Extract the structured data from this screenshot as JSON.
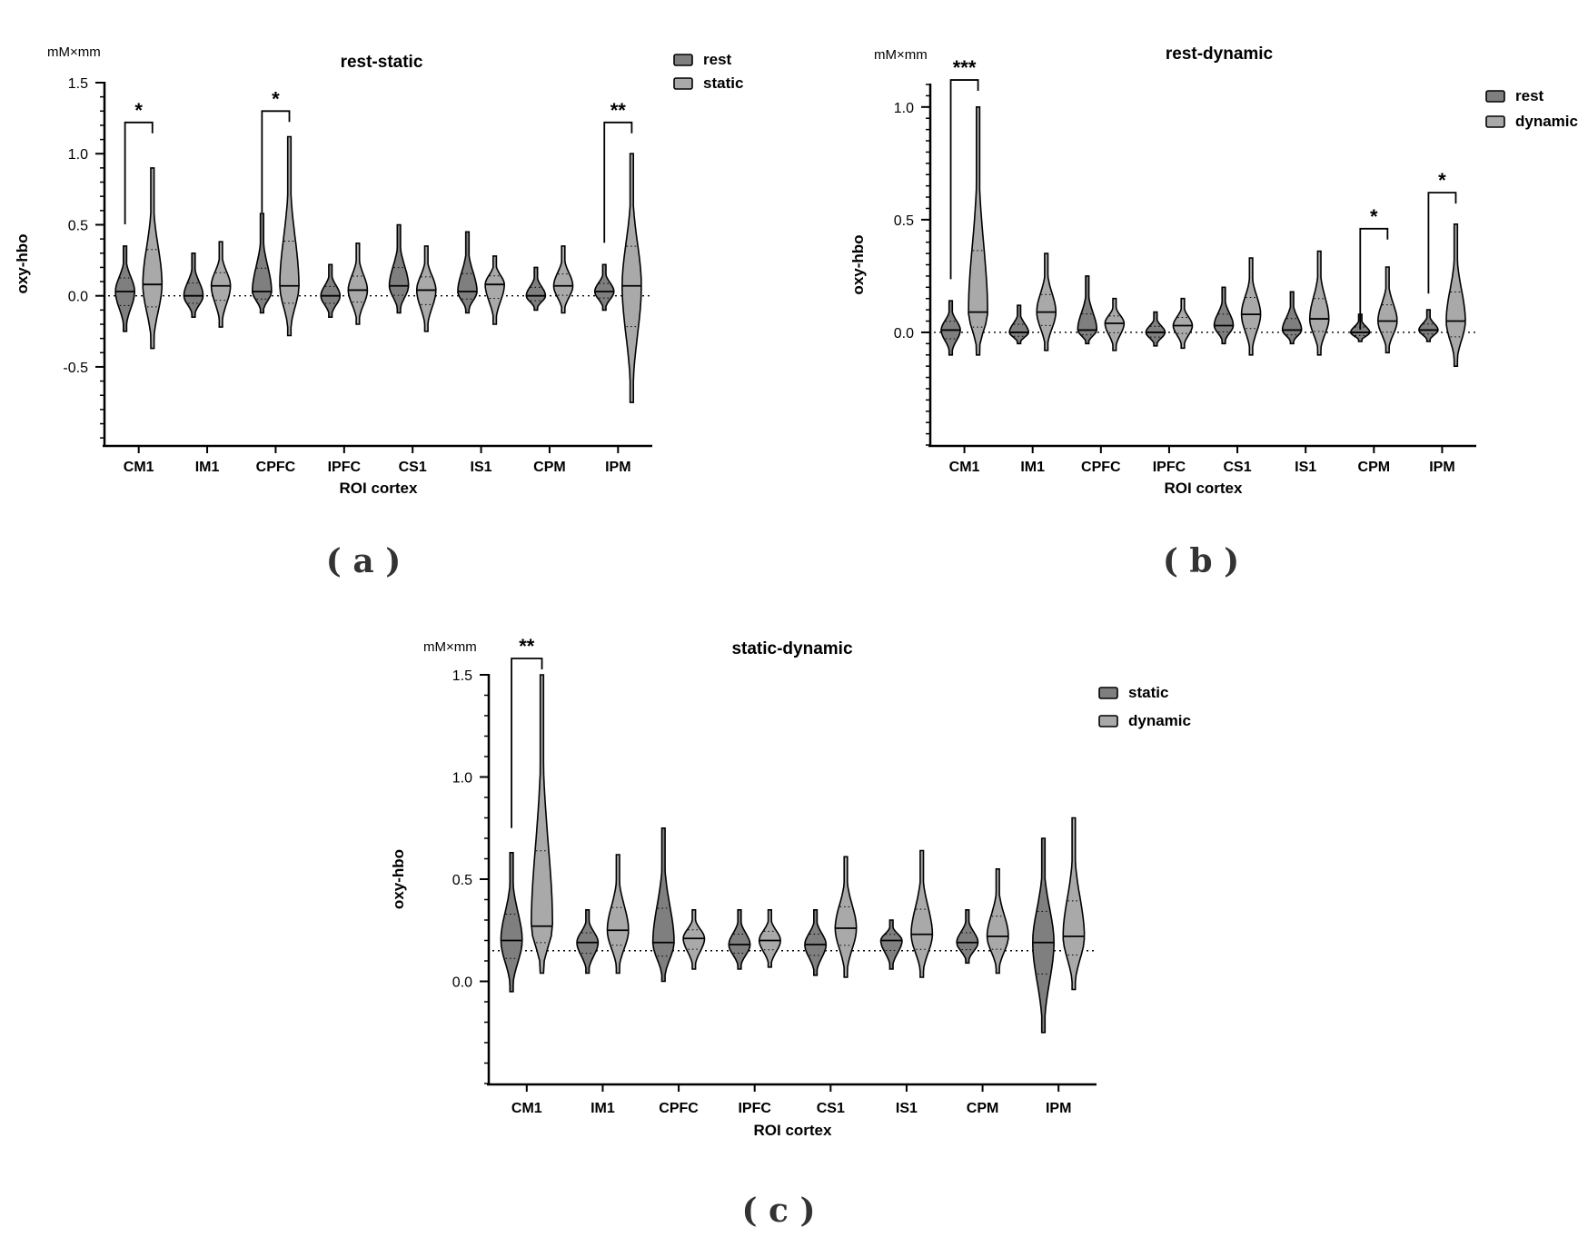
{
  "colors": {
    "group1": "#7f7f7f",
    "group2": "#a9a9a9",
    "axis": "#000000"
  },
  "panel_labels": [
    "( a )",
    "( b )",
    "( c )"
  ],
  "chart_data": [
    {
      "type": "violin",
      "title": "rest-static",
      "unit": "mM×mm",
      "ylabel": "oxy-hbo",
      "xlabel": "ROI cortex",
      "categories": [
        "CM1",
        "IM1",
        "CPFC",
        "IPFC",
        "CS1",
        "IS1",
        "CPM",
        "IPM"
      ],
      "yticks": [
        "1.5",
        "1.0",
        "0.5",
        "0.0",
        "-0.5"
      ],
      "ytick_values": [
        1.5,
        1.0,
        0.5,
        0.0,
        -0.5
      ],
      "ylim": [
        -1.05,
        1.5
      ],
      "legend": [
        "rest",
        "static"
      ],
      "legend_position": "top-right",
      "reference_line": 0.0,
      "series": [
        {
          "name": "rest",
          "median": [
            0.03,
            0.0,
            0.03,
            0.0,
            0.07,
            0.03,
            0.0,
            0.03
          ],
          "min": [
            -0.25,
            -0.15,
            -0.12,
            -0.15,
            -0.12,
            -0.12,
            -0.1,
            -0.1
          ],
          "max": [
            0.35,
            0.3,
            0.58,
            0.22,
            0.5,
            0.45,
            0.2,
            0.22
          ]
        },
        {
          "name": "static",
          "median": [
            0.08,
            0.07,
            0.07,
            0.04,
            0.04,
            0.08,
            0.07,
            0.07
          ],
          "min": [
            -0.37,
            -0.22,
            -0.28,
            -0.2,
            -0.25,
            -0.2,
            -0.12,
            -0.75
          ],
          "max": [
            0.9,
            0.38,
            1.12,
            0.37,
            0.35,
            0.28,
            0.35,
            1.0
          ]
        }
      ],
      "significance": [
        {
          "category": "CM1",
          "label": "*",
          "y": 1.22
        },
        {
          "category": "CPFC",
          "label": "*",
          "y": 1.3
        },
        {
          "category": "IPM",
          "label": "**",
          "y": 1.22
        }
      ]
    },
    {
      "type": "violin",
      "title": "rest-dynamic",
      "unit": "mM×mm",
      "ylabel": "oxy-hbo",
      "xlabel": "ROI cortex",
      "categories": [
        "CM1",
        "IM1",
        "CPFC",
        "IPFC",
        "CS1",
        "IS1",
        "CPM",
        "IPM"
      ],
      "yticks": [
        "1.0",
        "0.5",
        "0.0"
      ],
      "ytick_values": [
        1.0,
        0.5,
        0.0
      ],
      "ylim": [
        -0.5,
        1.1
      ],
      "legend": [
        "rest",
        "dynamic"
      ],
      "legend_position": "top-right",
      "reference_line": 0.0,
      "series": [
        {
          "name": "rest",
          "median": [
            0.01,
            0.0,
            0.01,
            0.0,
            0.03,
            0.01,
            0.0,
            0.01
          ],
          "min": [
            -0.1,
            -0.05,
            -0.05,
            -0.06,
            -0.05,
            -0.05,
            -0.04,
            -0.04
          ],
          "max": [
            0.14,
            0.12,
            0.25,
            0.09,
            0.2,
            0.18,
            0.08,
            0.1
          ]
        },
        {
          "name": "dynamic",
          "median": [
            0.09,
            0.09,
            0.04,
            0.03,
            0.08,
            0.06,
            0.05,
            0.05
          ],
          "min": [
            -0.1,
            -0.08,
            -0.08,
            -0.07,
            -0.1,
            -0.1,
            -0.09,
            -0.15
          ],
          "max": [
            1.0,
            0.35,
            0.15,
            0.15,
            0.33,
            0.36,
            0.29,
            0.48
          ]
        }
      ],
      "significance": [
        {
          "category": "CM1",
          "label": "***",
          "y": 1.12
        },
        {
          "category": "CPM",
          "label": "*",
          "y": 0.46
        },
        {
          "category": "IPM",
          "label": "*",
          "y": 0.62
        }
      ]
    },
    {
      "type": "violin",
      "title": "static-dynamic",
      "unit": "mM×mm",
      "ylabel": "oxy-hbo",
      "xlabel": "ROI cortex",
      "categories": [
        "CM1",
        "IM1",
        "CPFC",
        "IPFC",
        "CS1",
        "IS1",
        "CPM",
        "IPM"
      ],
      "yticks": [
        "1.5",
        "1.0",
        "0.5",
        "0.0"
      ],
      "ytick_values": [
        1.5,
        1.0,
        0.5,
        0.0
      ],
      "ylim": [
        -0.5,
        1.5
      ],
      "legend": [
        "static",
        "dynamic"
      ],
      "legend_position": "top-right",
      "reference_line": 0.15,
      "series": [
        {
          "name": "static",
          "median": [
            0.2,
            0.19,
            0.19,
            0.18,
            0.18,
            0.2,
            0.19,
            0.19
          ],
          "min": [
            -0.05,
            0.04,
            0.0,
            0.06,
            0.03,
            0.06,
            0.09,
            -0.25
          ],
          "max": [
            0.63,
            0.35,
            0.75,
            0.35,
            0.35,
            0.3,
            0.35,
            0.7
          ]
        },
        {
          "name": "dynamic",
          "median": [
            0.27,
            0.25,
            0.21,
            0.2,
            0.26,
            0.23,
            0.22,
            0.22
          ],
          "min": [
            0.04,
            0.04,
            0.06,
            0.07,
            0.02,
            0.02,
            0.04,
            -0.04
          ],
          "max": [
            1.5,
            0.62,
            0.35,
            0.35,
            0.61,
            0.64,
            0.55,
            0.8
          ]
        }
      ],
      "significance": [
        {
          "category": "CM1",
          "label": "**",
          "y": 1.58
        }
      ]
    }
  ]
}
